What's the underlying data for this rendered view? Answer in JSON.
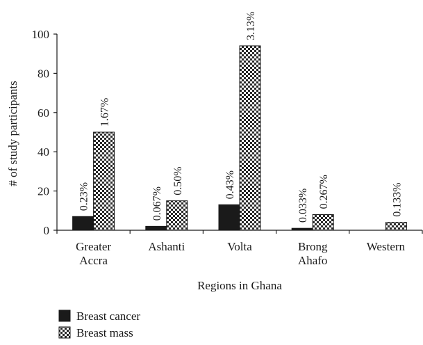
{
  "chart_data": {
    "type": "bar",
    "title": "",
    "xlabel": "Regions in Ghana",
    "ylabel": "# of study participants",
    "ylim": [
      0,
      100
    ],
    "yticks": [
      0,
      20,
      40,
      60,
      80,
      100
    ],
    "grid": false,
    "legend_position": "bottom-left",
    "categories": [
      {
        "lines": [
          "Greater",
          "Accra"
        ]
      },
      {
        "lines": [
          "Ashanti"
        ]
      },
      {
        "lines": [
          "Volta"
        ]
      },
      {
        "lines": [
          "Brong",
          "Ahafo"
        ]
      },
      {
        "lines": [
          "Western"
        ]
      }
    ],
    "series": [
      {
        "name": "Breast cancer",
        "fill": "solid",
        "color": "#1a1a1a",
        "values": [
          7,
          2,
          13,
          1,
          0
        ],
        "labels": [
          "0.23%",
          "0.067%",
          "0.43%",
          "0.033%",
          ""
        ]
      },
      {
        "name": "Breast mass",
        "fill": "checkered",
        "color": "#1a1a1a",
        "values": [
          50,
          15,
          94,
          8,
          4
        ],
        "labels": [
          "1.67%",
          "0.50%",
          "3.13%",
          "0.267%",
          "0.133%"
        ]
      }
    ]
  }
}
